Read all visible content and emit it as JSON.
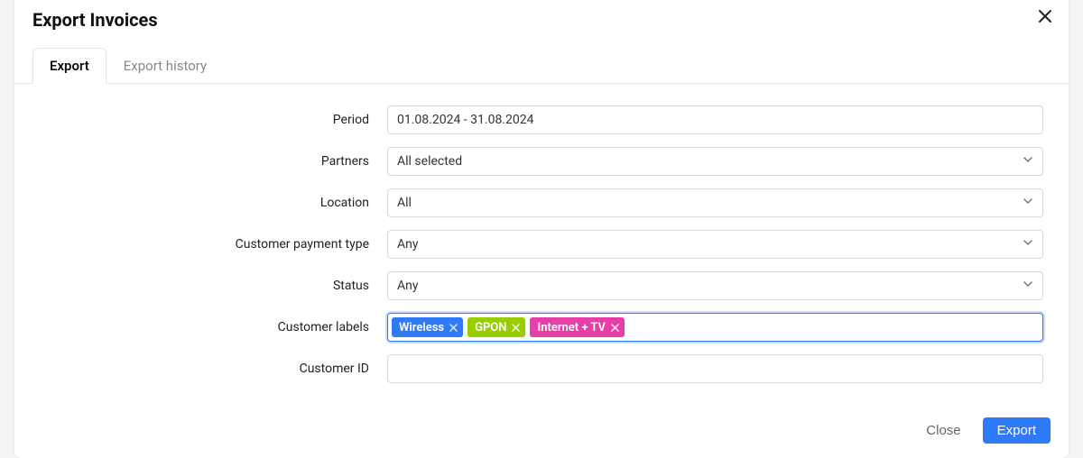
{
  "modal": {
    "title": "Export Invoices"
  },
  "tabs": {
    "export": "Export",
    "history": "Export history"
  },
  "form": {
    "period_label": "Period",
    "period_value": "01.08.2024 - 31.08.2024",
    "partners_label": "Partners",
    "partners_value": "All selected",
    "location_label": "Location",
    "location_value": "All",
    "payment_type_label": "Customer payment type",
    "payment_type_value": "Any",
    "status_label": "Status",
    "status_value": "Any",
    "labels_label": "Customer labels",
    "customer_id_label": "Customer ID",
    "customer_id_value": ""
  },
  "labels_tags": [
    {
      "text": "Wireless",
      "color": "#2f7af9"
    },
    {
      "text": "GPON",
      "color": "#9acd00"
    },
    {
      "text": "Internet + TV",
      "color": "#e83ea8"
    }
  ],
  "footer": {
    "close": "Close",
    "export": "Export"
  }
}
